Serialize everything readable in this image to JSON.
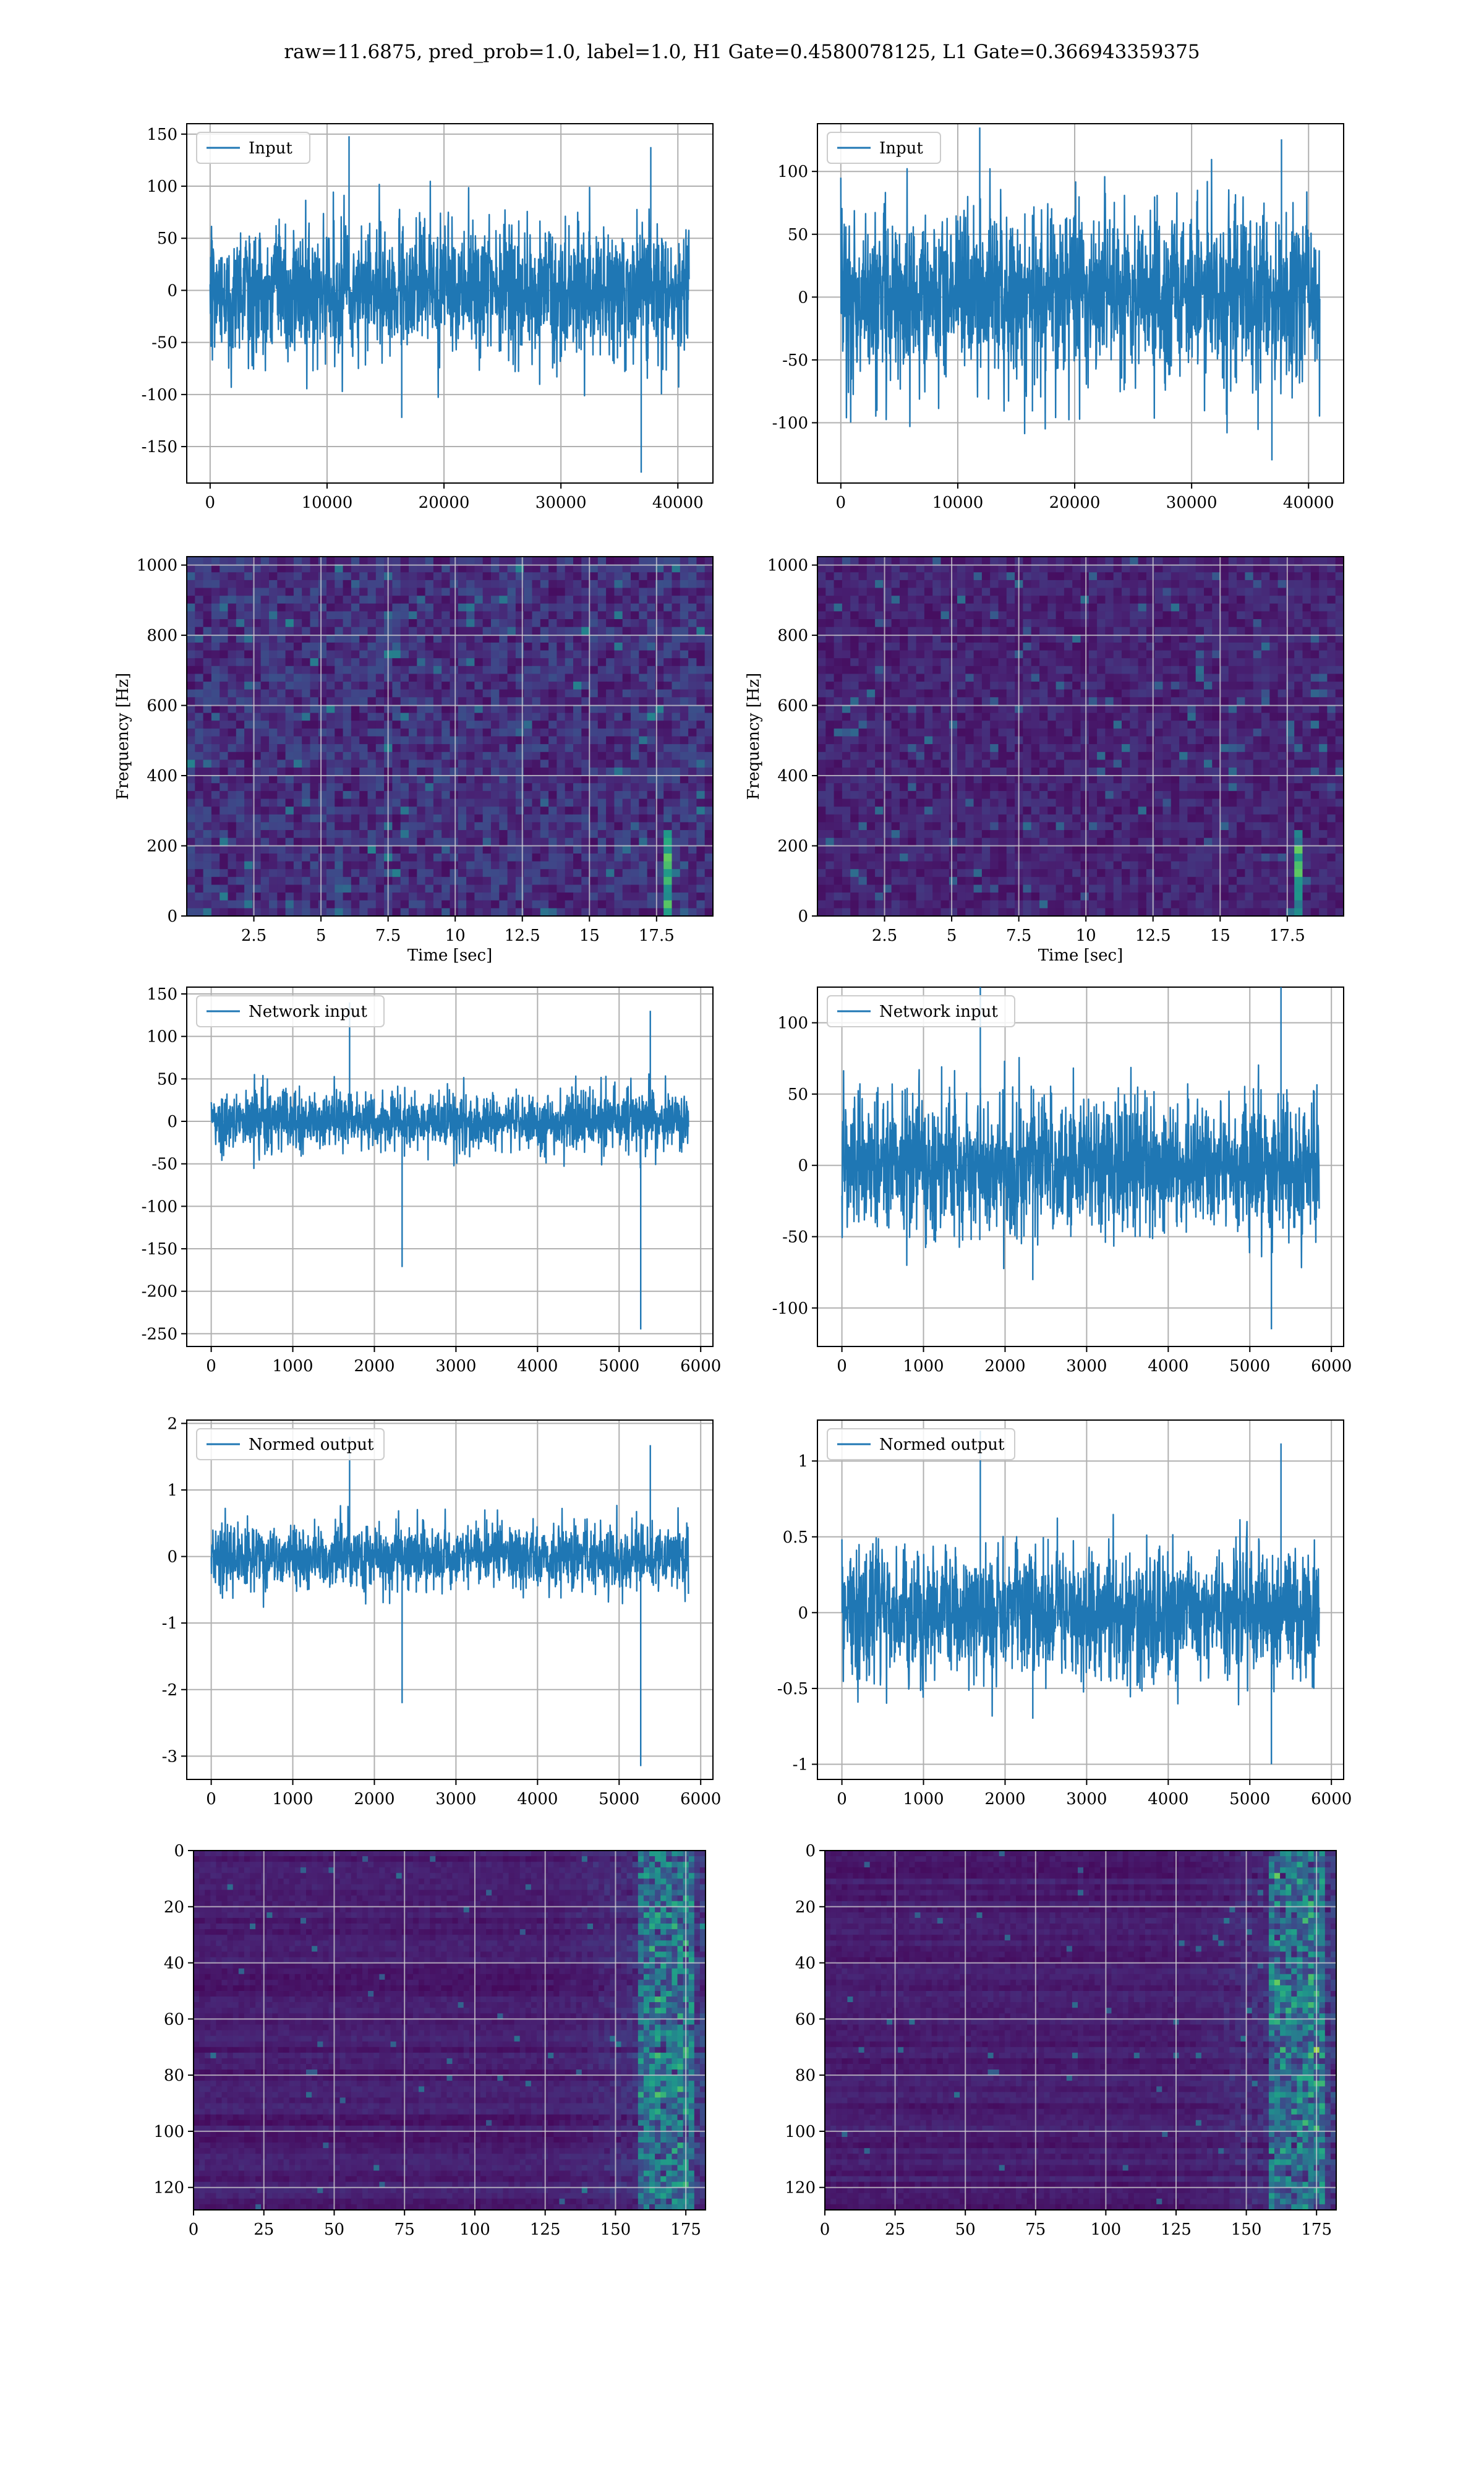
{
  "page": {
    "title": "raw=11.6875, pred_prob=1.0, label=1.0, H1 Gate=0.4580078125, L1 Gate=0.366943359375"
  },
  "colors": {
    "line": "#1f77b4",
    "grid": "#b0b0b0",
    "viridis_dark": "#440154",
    "viridis_blue": "#3b528b",
    "viridis_teal": "#21918c",
    "viridis_green": "#5ec962",
    "viridis_yellow": "#fde725"
  },
  "chart_data": [
    {
      "id": "h1-input",
      "type": "line",
      "legend": "Input",
      "xlim": [
        -2000,
        43000
      ],
      "ylim": [
        -185,
        160
      ],
      "xticks": [
        0,
        10000,
        20000,
        30000,
        40000
      ],
      "yticks": [
        -150,
        -100,
        -50,
        0,
        50,
        100,
        150
      ],
      "x_range": [
        0,
        40960
      ],
      "band": [
        -75,
        75
      ],
      "peak_range": [
        -175,
        148
      ]
    },
    {
      "id": "l1-input",
      "type": "line",
      "legend": "Input",
      "xlim": [
        -2000,
        43000
      ],
      "ylim": [
        -148,
        138
      ],
      "xticks": [
        0,
        10000,
        20000,
        30000,
        40000
      ],
      "yticks": [
        -100,
        -50,
        0,
        50,
        100
      ],
      "x_range": [
        0,
        40960
      ],
      "band": [
        -80,
        82
      ],
      "peak_range": [
        -130,
        135
      ]
    },
    {
      "id": "h1-spectrogram",
      "type": "heatmap",
      "xlabel": "Time [sec]",
      "ylabel": "Frequency [Hz]",
      "xlim": [
        0,
        19.6
      ],
      "ylim": [
        0,
        1024
      ],
      "xticks": [
        2.5,
        5.0,
        7.5,
        10.0,
        12.5,
        15.0,
        17.5
      ],
      "yticks": [
        0,
        200,
        400,
        600,
        800,
        1000
      ],
      "feature": "chirp near t=18 s below 250 Hz"
    },
    {
      "id": "l1-spectrogram",
      "type": "heatmap",
      "xlabel": "Time [sec]",
      "ylabel": "Frequency [Hz]",
      "xlim": [
        0,
        19.6
      ],
      "ylim": [
        0,
        1024
      ],
      "xticks": [
        2.5,
        5.0,
        7.5,
        10.0,
        12.5,
        15.0,
        17.5
      ],
      "yticks": [
        0,
        200,
        400,
        600,
        800,
        1000
      ],
      "feature": "chirp near t=18 s below 250 Hz"
    },
    {
      "id": "h1-network-input",
      "type": "line",
      "legend": "Network input",
      "xlim": [
        -300,
        6150
      ],
      "ylim": [
        -265,
        158
      ],
      "xticks": [
        0,
        1000,
        2000,
        3000,
        4000,
        5000,
        6000
      ],
      "yticks": [
        -250,
        -200,
        -150,
        -100,
        -50,
        0,
        50,
        100,
        150
      ],
      "x_range": [
        0,
        5850
      ],
      "band": [
        -40,
        40
      ],
      "peak_range": [
        -245,
        140
      ]
    },
    {
      "id": "l1-network-input",
      "type": "line",
      "legend": "Network input",
      "xlim": [
        -300,
        6150
      ],
      "ylim": [
        -127,
        125
      ],
      "xticks": [
        0,
        1000,
        2000,
        3000,
        4000,
        5000,
        6000
      ],
      "yticks": [
        -100,
        -50,
        0,
        50,
        100
      ],
      "x_range": [
        0,
        5850
      ],
      "band": [
        -55,
        55
      ],
      "peak_range": [
        -115,
        137
      ]
    },
    {
      "id": "h1-normed-output",
      "type": "line",
      "legend": "Normed output",
      "xlim": [
        -300,
        6150
      ],
      "ylim": [
        -3.35,
        2.05
      ],
      "xticks": [
        0,
        1000,
        2000,
        3000,
        4000,
        5000,
        6000
      ],
      "yticks": [
        -3,
        -2,
        -1,
        0,
        1,
        2
      ],
      "x_range": [
        0,
        5850
      ],
      "band": [
        -0.55,
        0.55
      ],
      "peak_range": [
        -3.15,
        1.8
      ]
    },
    {
      "id": "l1-normed-output",
      "type": "line",
      "legend": "Normed output",
      "xlim": [
        -300,
        6150
      ],
      "ylim": [
        -1.1,
        1.27
      ],
      "xticks": [
        0,
        1000,
        2000,
        3000,
        4000,
        5000,
        6000
      ],
      "yticks": [
        -1.0,
        -0.5,
        0.0,
        0.5,
        1.0
      ],
      "x_range": [
        0,
        5850
      ],
      "band": [
        -0.5,
        0.5
      ],
      "peak_range": [
        -1.0,
        1.2
      ]
    },
    {
      "id": "h1-feature-map",
      "type": "heatmap",
      "xlim": [
        0,
        182
      ],
      "ylim": [
        128,
        0
      ],
      "xticks": [
        0,
        25,
        50,
        75,
        100,
        125,
        150,
        175
      ],
      "yticks": [
        0,
        20,
        40,
        60,
        80,
        100,
        120
      ],
      "feature": "bright activations in columns 150-180"
    },
    {
      "id": "l1-feature-map",
      "type": "heatmap",
      "xlim": [
        0,
        182
      ],
      "ylim": [
        128,
        0
      ],
      "xticks": [
        0,
        25,
        50,
        75,
        100,
        125,
        150,
        175
      ],
      "yticks": [
        0,
        20,
        40,
        60,
        80,
        100,
        120
      ],
      "feature": "bright activations in columns 150-180"
    }
  ]
}
